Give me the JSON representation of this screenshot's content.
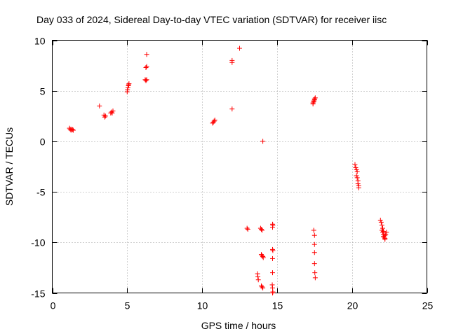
{
  "chart_data": {
    "type": "scatter",
    "title": "Day 033 of 2024, Sidereal Day-to-day VTEC variation (SDTVAR) for receiver iisc",
    "xlabel": "GPS time / hours",
    "ylabel": "SDTVAR / TECUs",
    "xlim": [
      0,
      25
    ],
    "ylim": [
      -15,
      10
    ],
    "xticks": [
      0,
      5,
      10,
      15,
      20,
      25
    ],
    "yticks": [
      -15,
      -10,
      -5,
      0,
      5,
      10
    ],
    "xtick_labels": [
      "0",
      "5",
      "10",
      "15",
      "20",
      "25"
    ],
    "ytick_labels": [
      "-15",
      "-10",
      "-5",
      "0",
      "5",
      "10"
    ],
    "grid": true,
    "marker": "+",
    "color": "#ff0000",
    "series": [
      {
        "name": "iisc",
        "x": [
          1.15,
          1.2,
          1.25,
          1.3,
          1.35,
          1.4,
          3.15,
          3.45,
          3.5,
          3.55,
          3.9,
          3.95,
          4.0,
          4.05,
          5.0,
          5.02,
          5.05,
          5.08,
          5.1,
          5.12,
          6.2,
          6.25,
          6.3,
          6.25,
          6.3,
          6.3,
          10.7,
          10.75,
          10.8,
          10.85,
          12.0,
          12.0,
          12.0,
          12.5,
          13.0,
          13.05,
          13.7,
          13.72,
          13.75,
          13.9,
          13.95,
          14.0,
          13.95,
          14.0,
          14.05,
          14.08,
          13.95,
          14.0,
          14.05,
          14.05,
          14.7,
          14.7,
          14.72,
          14.7,
          14.72,
          14.7,
          14.7,
          14.68,
          14.7,
          14.72,
          14.7,
          17.4,
          17.45,
          17.5,
          17.55,
          17.4,
          17.45,
          17.5,
          17.45,
          17.5,
          17.5,
          17.5,
          17.5,
          17.52,
          17.55,
          20.2,
          20.25,
          20.3,
          20.35,
          20.3,
          20.35,
          20.4,
          20.4,
          20.45,
          20.45,
          21.9,
          21.95,
          22.0,
          22.05,
          22.0,
          22.05,
          22.1,
          22.1,
          22.15,
          22.2,
          22.2,
          22.25,
          22.3,
          22.1,
          22.2
        ],
        "y": [
          1.3,
          1.2,
          1.1,
          1.2,
          1.15,
          1.1,
          3.5,
          2.6,
          2.4,
          2.5,
          2.8,
          2.9,
          2.8,
          3.0,
          4.9,
          5.1,
          5.3,
          5.5,
          5.6,
          5.7,
          6.1,
          6.0,
          6.1,
          7.3,
          7.4,
          8.6,
          1.8,
          1.9,
          2.0,
          2.1,
          7.8,
          8.0,
          3.2,
          9.2,
          -8.6,
          -8.7,
          -13.1,
          -13.4,
          -13.7,
          -8.6,
          -8.7,
          -8.8,
          -11.2,
          -11.3,
          -11.4,
          -11.5,
          -14.3,
          -14.4,
          -14.5,
          0.0,
          -8.2,
          -8.5,
          -8.3,
          -10.7,
          -10.8,
          -11.6,
          -13.0,
          -14.2,
          -14.5,
          -14.9,
          -15.0,
          3.7,
          3.9,
          4.1,
          4.3,
          3.8,
          4.0,
          4.2,
          -8.8,
          -9.3,
          -10.2,
          -11.0,
          -12.1,
          -13.0,
          -13.5,
          -2.3,
          -2.6,
          -2.8,
          -3.0,
          -3.4,
          -3.6,
          -3.9,
          -4.2,
          -4.4,
          -4.6,
          -7.8,
          -8.0,
          -8.3,
          -8.6,
          -8.8,
          -9.0,
          -9.2,
          -9.4,
          -9.5,
          -9.3,
          -9.6,
          -9.2,
          -9.0,
          -8.9,
          -9.7
        ]
      }
    ]
  }
}
